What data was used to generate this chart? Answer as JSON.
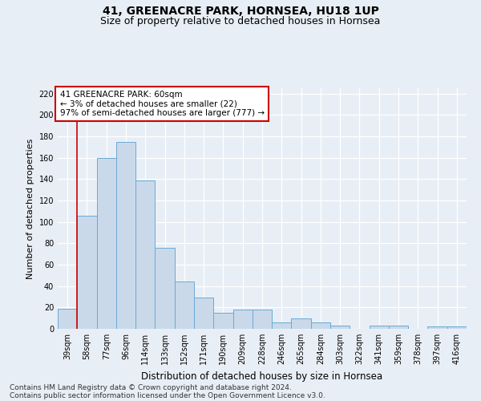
{
  "title1": "41, GREENACRE PARK, HORNSEA, HU18 1UP",
  "title2": "Size of property relative to detached houses in Hornsea",
  "xlabel": "Distribution of detached houses by size in Hornsea",
  "ylabel": "Number of detached properties",
  "categories": [
    "39sqm",
    "58sqm",
    "77sqm",
    "96sqm",
    "114sqm",
    "133sqm",
    "152sqm",
    "171sqm",
    "190sqm",
    "209sqm",
    "228sqm",
    "246sqm",
    "265sqm",
    "284sqm",
    "303sqm",
    "322sqm",
    "341sqm",
    "359sqm",
    "378sqm",
    "397sqm",
    "416sqm"
  ],
  "values": [
    19,
    106,
    160,
    175,
    139,
    76,
    44,
    29,
    15,
    18,
    18,
    6,
    10,
    6,
    3,
    0,
    3,
    3,
    0,
    2,
    2
  ],
  "bar_color": "#c9d9ea",
  "bar_edge_color": "#6aaad4",
  "annotation_text": "41 GREENACRE PARK: 60sqm\n← 3% of detached houses are smaller (22)\n97% of semi-detached houses are larger (777) →",
  "annotation_box_color": "#ffffff",
  "annotation_box_edge": "#cc0000",
  "subject_line_color": "#cc0000",
  "ylim": [
    0,
    225
  ],
  "yticks": [
    0,
    20,
    40,
    60,
    80,
    100,
    120,
    140,
    160,
    180,
    200,
    220
  ],
  "footer1": "Contains HM Land Registry data © Crown copyright and database right 2024.",
  "footer2": "Contains public sector information licensed under the Open Government Licence v3.0.",
  "bg_color": "#e8eef5",
  "plot_bg_color": "#e8eef5",
  "grid_color": "#ffffff",
  "title1_fontsize": 10,
  "title2_fontsize": 9,
  "xlabel_fontsize": 8.5,
  "ylabel_fontsize": 8,
  "tick_fontsize": 7,
  "footer_fontsize": 6.5,
  "annot_fontsize": 7.5
}
